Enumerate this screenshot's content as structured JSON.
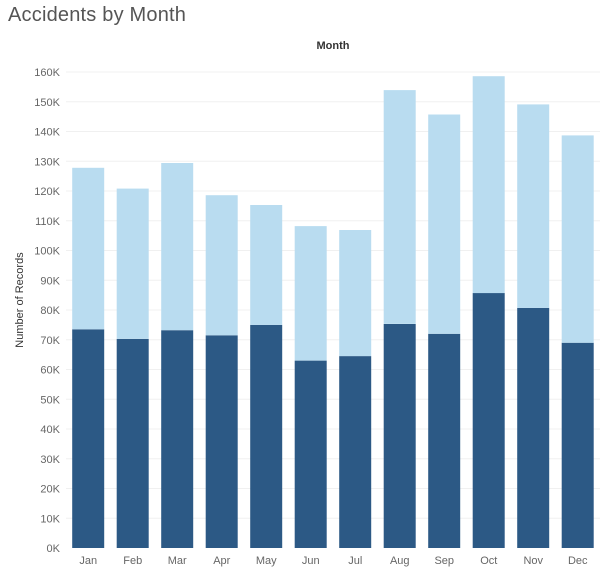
{
  "chart_data": {
    "type": "bar",
    "stacked": true,
    "title": "Accidents by Month",
    "column_header": "Month",
    "ylabel": "Number of Records",
    "ylim": [
      0,
      160000
    ],
    "yticks": [
      0,
      10000,
      20000,
      30000,
      40000,
      50000,
      60000,
      70000,
      80000,
      90000,
      100000,
      110000,
      120000,
      130000,
      140000,
      150000,
      160000
    ],
    "ytick_labels": [
      "0K",
      "10K",
      "20K",
      "30K",
      "40K",
      "50K",
      "60K",
      "70K",
      "80K",
      "90K",
      "100K",
      "110K",
      "120K",
      "130K",
      "140K",
      "150K",
      "160K"
    ],
    "grid": true,
    "categories": [
      "Jan",
      "Feb",
      "Mar",
      "Apr",
      "May",
      "Jun",
      "Jul",
      "Aug",
      "Sep",
      "Oct",
      "Nov",
      "Dec"
    ],
    "series": [
      {
        "color": "#2c5985",
        "values": [
          73500,
          70300,
          73200,
          71500,
          75000,
          63000,
          64500,
          75300,
          72000,
          85700,
          80700,
          69000
        ]
      },
      {
        "color": "#b9dcf0",
        "values": [
          54300,
          50500,
          56200,
          47100,
          40300,
          45200,
          42400,
          78600,
          73700,
          72900,
          68400,
          69700
        ]
      }
    ]
  }
}
